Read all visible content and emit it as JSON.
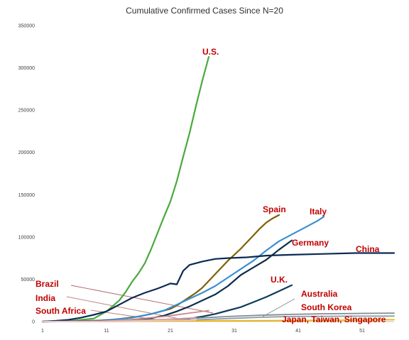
{
  "chart_data": {
    "type": "line",
    "title": "Cumulative Confirmed Cases Since N=20",
    "xlabel": "",
    "ylabel": "",
    "xlim": [
      1,
      56
    ],
    "ylim": [
      0,
      350000
    ],
    "x_ticks": [
      "1",
      "11",
      "21",
      "31",
      "41",
      "51"
    ],
    "y_ticks": [
      "0",
      "50000",
      "100000",
      "150000",
      "200000",
      "250000",
      "300000",
      "350000"
    ],
    "grid": false,
    "legend": "none",
    "series": [
      {
        "name": "U.S.",
        "color": "#4aa93c",
        "x": [
          1,
          5,
          9,
          11,
          13,
          14,
          15,
          16,
          17,
          18,
          19,
          20,
          21,
          22,
          23,
          24,
          25,
          26,
          27
        ],
        "y": [
          20,
          600,
          3500,
          12000,
          25000,
          35000,
          47000,
          57000,
          69000,
          86000,
          105000,
          124000,
          142000,
          166000,
          195000,
          223000,
          255000,
          285000,
          313000
        ]
      },
      {
        "name": "Spain",
        "color": "#7f6000",
        "x": [
          1,
          8,
          12,
          16,
          18,
          20,
          21,
          22,
          23,
          24,
          25,
          26,
          27,
          28,
          29,
          30,
          31,
          32,
          33,
          34,
          35,
          36,
          37,
          38
        ],
        "y": [
          20,
          300,
          2000,
          6000,
          9000,
          13000,
          15000,
          19000,
          24000,
          29000,
          34000,
          40000,
          48000,
          56000,
          64000,
          72000,
          79000,
          86000,
          94000,
          102000,
          110000,
          117000,
          122000,
          126000
        ]
      },
      {
        "name": "Italy",
        "color": "#3a8fd1",
        "x": [
          1,
          10,
          15,
          18,
          20,
          22,
          24,
          26,
          28,
          30,
          32,
          34,
          36,
          38,
          40,
          42,
          44,
          45
        ],
        "y": [
          20,
          1000,
          4500,
          9000,
          13000,
          20000,
          27000,
          34000,
          42000,
          52000,
          62000,
          72000,
          84000,
          95000,
          103000,
          111000,
          119000,
          124000
        ]
      },
      {
        "name": "China",
        "color": "#0b2a53",
        "x": [
          1,
          3,
          5,
          7,
          9,
          11,
          13,
          15,
          17,
          19,
          20,
          21,
          22,
          23,
          24,
          26,
          28,
          30,
          33,
          36,
          40,
          45,
          50,
          56
        ],
        "y": [
          20,
          800,
          2000,
          4500,
          8000,
          12000,
          20000,
          28000,
          34000,
          39000,
          42000,
          45000,
          44000,
          60000,
          67000,
          71000,
          74000,
          75000,
          76000,
          78000,
          79000,
          80000,
          81000,
          81000
        ]
      },
      {
        "name": "Germany",
        "color": "#0d2d4c",
        "x": [
          1,
          14,
          18,
          20,
          22,
          24,
          26,
          28,
          30,
          32,
          34,
          36,
          38,
          40
        ],
        "y": [
          20,
          1500,
          4000,
          7000,
          12000,
          18000,
          25000,
          32000,
          42000,
          55000,
          64000,
          73000,
          85000,
          96000
        ]
      },
      {
        "name": "U.K.",
        "color": "#0e3b5c",
        "x": [
          1,
          16,
          20,
          24,
          26,
          28,
          30,
          32,
          34,
          36,
          38,
          40
        ],
        "y": [
          20,
          500,
          1500,
          3500,
          6000,
          9000,
          13000,
          17000,
          23000,
          29000,
          36000,
          43000
        ]
      },
      {
        "name": "Australia",
        "color": "#8a9aa6",
        "x": [
          1,
          15,
          20,
          25,
          30,
          35,
          40,
          45,
          50,
          56
        ],
        "y": [
          20,
          300,
          800,
          2000,
          3500,
          5000,
          6000,
          6200,
          6400,
          6500
        ]
      },
      {
        "name": "South Korea",
        "color": "#7f8c95",
        "x": [
          1,
          10,
          15,
          20,
          25,
          30,
          35,
          40,
          45,
          50,
          56
        ],
        "y": [
          20,
          600,
          1500,
          2500,
          4000,
          6000,
          7500,
          8500,
          9200,
          9600,
          10000
        ]
      },
      {
        "name": "Japan, Taiwan, Singapore",
        "color": "#f2b600",
        "x": [
          1,
          10,
          20,
          30,
          40,
          50,
          56
        ],
        "y": [
          20,
          200,
          500,
          900,
          1300,
          1800,
          2200
        ]
      },
      {
        "name": "Brazil",
        "color": "#c98a8a",
        "x": [
          1,
          10,
          15,
          20,
          25,
          27
        ],
        "y": [
          20,
          500,
          2500,
          6000,
          11000,
          13000
        ]
      },
      {
        "name": "India",
        "color": "#d7a0a0",
        "x": [
          1,
          10,
          15,
          20,
          25
        ],
        "y": [
          20,
          200,
          800,
          2500,
          4500
        ]
      },
      {
        "name": "South Africa",
        "color": "#e8c8c8",
        "x": [
          1,
          10,
          15,
          20,
          25
        ],
        "y": [
          20,
          150,
          600,
          1300,
          1800
        ]
      }
    ],
    "annotations": [
      {
        "text": "U.S.",
        "series": "U.S."
      },
      {
        "text": "Spain",
        "series": "Spain"
      },
      {
        "text": "Italy",
        "series": "Italy"
      },
      {
        "text": "Germany",
        "series": "Germany"
      },
      {
        "text": "China",
        "series": "China"
      },
      {
        "text": "U.K.",
        "series": "U.K."
      },
      {
        "text": "Brazil",
        "series": "Brazil"
      },
      {
        "text": "India",
        "series": "India"
      },
      {
        "text": "South Africa",
        "series": "South Africa"
      },
      {
        "text": "Australia",
        "series": "Australia"
      },
      {
        "text": "South Korea",
        "series": "South Korea"
      },
      {
        "text": "Japan, Taiwan, Singapore",
        "series": "Japan, Taiwan, Singapore"
      }
    ]
  }
}
